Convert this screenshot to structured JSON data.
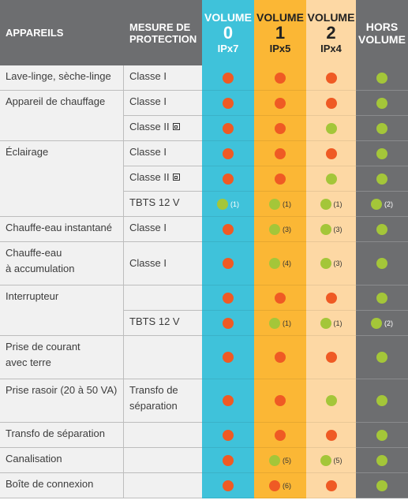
{
  "header": {
    "appareils": "APPAREILS",
    "mesure": [
      "MESURE DE",
      "PROTECTION"
    ],
    "volume0": {
      "line1": "VOLUME",
      "line2": "0",
      "line3": "IPx7"
    },
    "volume1": {
      "line1": "VOLUME",
      "line2": "1",
      "line3": "IPx5"
    },
    "volume2": {
      "line1": "VOLUME",
      "line2": "2",
      "line3": "IPx4"
    },
    "hors": [
      "HORS",
      "VOLUME"
    ]
  },
  "colors": {
    "header_bg": "#6d6e70",
    "volume0": "#3fc2da",
    "volume1": "#fbb735",
    "volume2": "#fdd8a4",
    "hors": "#6d6e70",
    "text_cells": "#f1f1f1",
    "dot_red": "#ef5a24",
    "dot_green": "#a4c639"
  },
  "appliances": [
    {
      "label": [
        "Lave-linge, sèche-linge"
      ]
    },
    {
      "label": [
        "Appareil de chauffage"
      ]
    },
    {
      "label": [
        "Éclairage"
      ]
    },
    {
      "label": [
        "Chauffe-eau instantané"
      ]
    },
    {
      "label": [
        "Chauffe-eau",
        "à accumulation"
      ]
    },
    {
      "label": [
        "Interrupteur"
      ]
    },
    {
      "label": [
        "Prise de courant",
        "avec terre"
      ]
    },
    {
      "label": [
        "Prise rasoir (20 à 50 VA)"
      ]
    },
    {
      "label": [
        "Transfo de séparation"
      ]
    },
    {
      "label": [
        "Canalisation"
      ]
    },
    {
      "label": [
        "Boîte de connexion"
      ]
    }
  ],
  "rows": [
    {
      "protection": [
        "Classe I"
      ],
      "double_insulation": false,
      "v0": {
        "d": "red"
      },
      "v1": {
        "d": "red"
      },
      "v2": {
        "d": "red"
      },
      "hors": {
        "d": "green"
      }
    },
    {
      "protection": [
        "Classe I"
      ],
      "double_insulation": false,
      "v0": {
        "d": "red"
      },
      "v1": {
        "d": "red"
      },
      "v2": {
        "d": "red"
      },
      "hors": {
        "d": "green"
      }
    },
    {
      "protection": [
        "Classe II"
      ],
      "double_insulation": true,
      "v0": {
        "d": "red"
      },
      "v1": {
        "d": "red"
      },
      "v2": {
        "d": "green"
      },
      "hors": {
        "d": "green"
      }
    },
    {
      "protection": [
        "Classe I"
      ],
      "double_insulation": false,
      "v0": {
        "d": "red"
      },
      "v1": {
        "d": "red"
      },
      "v2": {
        "d": "red"
      },
      "hors": {
        "d": "green"
      }
    },
    {
      "protection": [
        "Classe II"
      ],
      "double_insulation": true,
      "v0": {
        "d": "red"
      },
      "v1": {
        "d": "red"
      },
      "v2": {
        "d": "green"
      },
      "hors": {
        "d": "green"
      }
    },
    {
      "protection": [
        "TBTS 12 V"
      ],
      "double_insulation": false,
      "v0": {
        "d": "green",
        "n": "(1)"
      },
      "v1": {
        "d": "green",
        "n": "(1)"
      },
      "v2": {
        "d": "green",
        "n": "(1)"
      },
      "hors": {
        "d": "green",
        "n": "(2)"
      }
    },
    {
      "protection": [
        "Classe I"
      ],
      "double_insulation": false,
      "v0": {
        "d": "red"
      },
      "v1": {
        "d": "green",
        "n": "(3)"
      },
      "v2": {
        "d": "green",
        "n": "(3)"
      },
      "hors": {
        "d": "green"
      }
    },
    {
      "protection": [
        "Classe I"
      ],
      "double_insulation": false,
      "v0": {
        "d": "red"
      },
      "v1": {
        "d": "green",
        "n": "(4)"
      },
      "v2": {
        "d": "green",
        "n": "(3)"
      },
      "hors": {
        "d": "green"
      }
    },
    {
      "protection": [],
      "double_insulation": false,
      "v0": {
        "d": "red"
      },
      "v1": {
        "d": "red"
      },
      "v2": {
        "d": "red"
      },
      "hors": {
        "d": "green"
      }
    },
    {
      "protection": [
        "TBTS 12 V"
      ],
      "double_insulation": false,
      "v0": {
        "d": "red"
      },
      "v1": {
        "d": "green",
        "n": "(1)"
      },
      "v2": {
        "d": "green",
        "n": "(1)"
      },
      "hors": {
        "d": "green",
        "n": "(2)"
      }
    },
    {
      "protection": [],
      "double_insulation": false,
      "v0": {
        "d": "red"
      },
      "v1": {
        "d": "red"
      },
      "v2": {
        "d": "red"
      },
      "hors": {
        "d": "green"
      }
    },
    {
      "protection": [
        "Transfo de",
        "séparation"
      ],
      "double_insulation": false,
      "v0": {
        "d": "red"
      },
      "v1": {
        "d": "red"
      },
      "v2": {
        "d": "green"
      },
      "hors": {
        "d": "green"
      }
    },
    {
      "protection": [],
      "double_insulation": false,
      "v0": {
        "d": "red"
      },
      "v1": {
        "d": "red"
      },
      "v2": {
        "d": "red"
      },
      "hors": {
        "d": "green"
      }
    },
    {
      "protection": [],
      "double_insulation": false,
      "v0": {
        "d": "red"
      },
      "v1": {
        "d": "green",
        "n": "(5)"
      },
      "v2": {
        "d": "green",
        "n": "(5)"
      },
      "hors": {
        "d": "green"
      }
    },
    {
      "protection": [],
      "double_insulation": false,
      "v0": {
        "d": "red"
      },
      "v1": {
        "d": "red",
        "n": "(6)"
      },
      "v2": {
        "d": "red"
      },
      "hors": {
        "d": "green"
      }
    }
  ]
}
